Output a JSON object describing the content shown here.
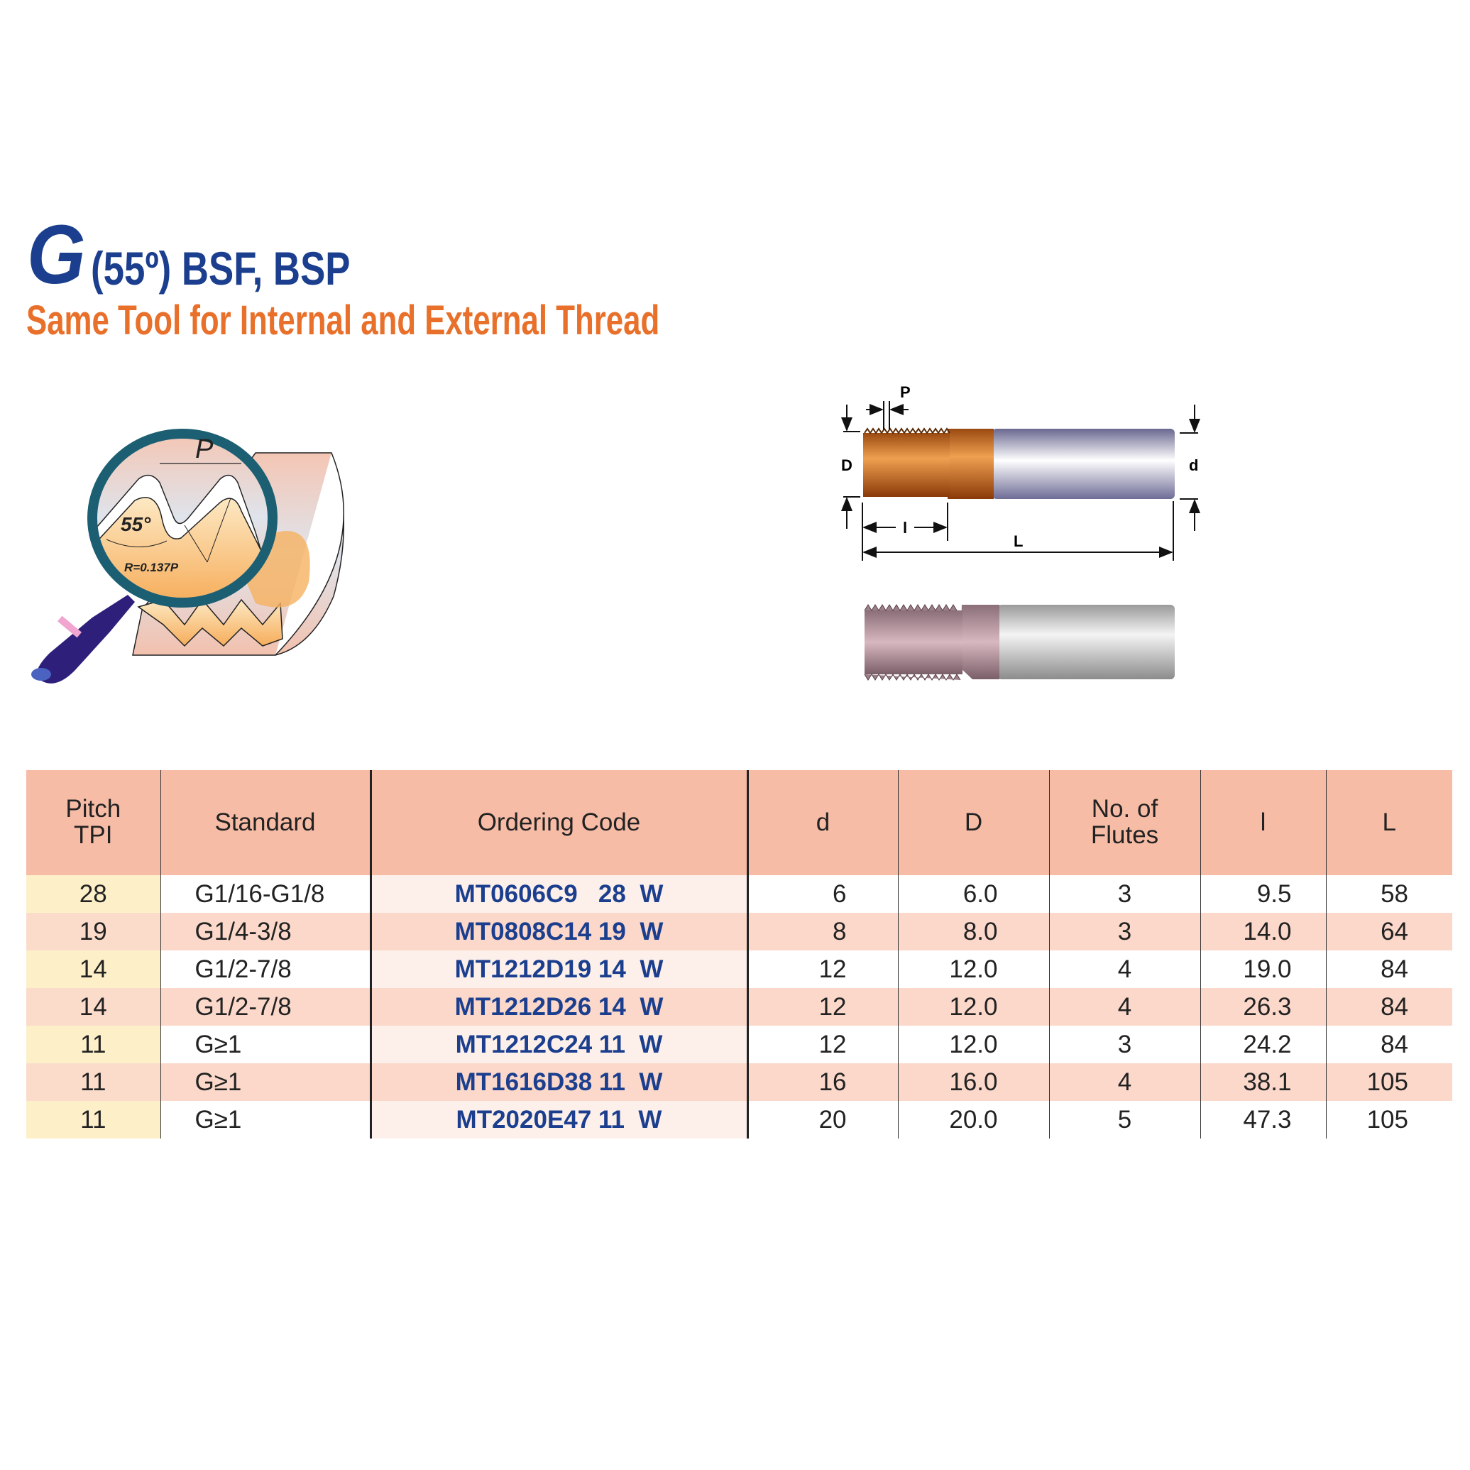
{
  "header": {
    "title_letter": "G",
    "title_rest": "(55º) BSF, BSP",
    "subtitle": "Same Tool for Internal and External Thread"
  },
  "thread_diagram": {
    "pitch_label": "P",
    "angle_label": "55°",
    "radius_label": "R=0.137P"
  },
  "tool_diagram": {
    "labels": {
      "P": "P",
      "D": "D",
      "d": "d",
      "l": "l",
      "L": "L"
    }
  },
  "colors": {
    "title_blue": "#1b3f8e",
    "subtitle_orange": "#e8702a",
    "header_bg": "#f7bca6",
    "row_alt_bg": "#fbd8ca",
    "pitch_col_bg": "#fdf0c9"
  },
  "table": {
    "headers": {
      "pitch_line1": "Pitch",
      "pitch_line2": "TPI",
      "standard": "Standard",
      "code": "Ordering Code",
      "d": "d",
      "D": "D",
      "flutes_line1": "No. of",
      "flutes_line2": "Flutes",
      "l": "l",
      "L": "L"
    },
    "rows": [
      {
        "pitch": "28",
        "standard": "G1/16-G1/8",
        "code": "MT0606C9   28  W",
        "d": "6",
        "D": "6.0",
        "flutes": "3",
        "l": "9.5",
        "L": "58"
      },
      {
        "pitch": "19",
        "standard": "G1/4-3/8",
        "code": "MT0808C14 19  W",
        "d": "8",
        "D": "8.0",
        "flutes": "3",
        "l": "14.0",
        "L": "64"
      },
      {
        "pitch": "14",
        "standard": "G1/2-7/8",
        "code": "MT1212D19 14  W",
        "d": "12",
        "D": "12.0",
        "flutes": "4",
        "l": "19.0",
        "L": "84"
      },
      {
        "pitch": "14",
        "standard": "G1/2-7/8",
        "code": "MT1212D26 14  W",
        "d": "12",
        "D": "12.0",
        "flutes": "4",
        "l": "26.3",
        "L": "84"
      },
      {
        "pitch": "11",
        "standard": "G≥1",
        "code": "MT1212C24 11  W",
        "d": "12",
        "D": "12.0",
        "flutes": "3",
        "l": "24.2",
        "L": "84"
      },
      {
        "pitch": "11",
        "standard": "G≥1",
        "code": "MT1616D38 11  W",
        "d": "16",
        "D": "16.0",
        "flutes": "4",
        "l": "38.1",
        "L": "105"
      },
      {
        "pitch": "11",
        "standard": "G≥1",
        "code": "MT2020E47 11  W",
        "d": "20",
        "D": "20.0",
        "flutes": "5",
        "l": "47.3",
        "L": "105"
      }
    ]
  }
}
